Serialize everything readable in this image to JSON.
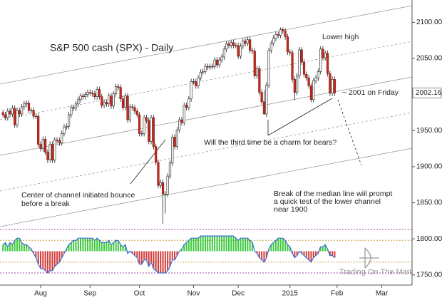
{
  "chart_data": {
    "type": "candlestick",
    "title": "S&P 500 cash (SPX) - Daily",
    "open": [
      1975,
      1972,
      1968,
      1977,
      1973,
      1981,
      1958,
      1978,
      1973,
      1983,
      1987,
      1988,
      1978,
      1978,
      1970,
      1970,
      1931,
      1925,
      1938,
      1920,
      1910,
      1931,
      1909,
      1937,
      1936,
      1933,
      1946,
      1955,
      1956,
      1972,
      1982,
      1981,
      1987,
      1993,
      1998,
      1997,
      2000,
      2003,
      2002,
      2001,
      1997,
      2007,
      1997,
      1985,
      1989,
      1987,
      1998,
      1984,
      2001,
      2011,
      2010,
      1994,
      1982,
      1998,
      1965,
      1983,
      1982,
      1977,
      1972,
      1946,
      1946,
      1968,
      1964,
      1935,
      1968,
      1928,
      1906,
      1874,
      1878,
      1862,
      1862,
      1887,
      1905,
      1941,
      1928,
      1951,
      1965,
      1961,
      1985,
      1982,
      1994,
      2018,
      2018,
      2012,
      2023,
      2031,
      2032,
      2039,
      2038,
      2039,
      2039,
      2048,
      2041,
      2048,
      2052,
      2063,
      2070,
      2068,
      2072,
      2068,
      2068,
      2053,
      2067,
      2074,
      2071,
      2076,
      2061,
      2060,
      2026,
      2036,
      2003,
      1990,
      1973,
      2013,
      2061,
      2071,
      2078,
      2083,
      2082,
      2090,
      2088,
      2080,
      2059,
      2058,
      2021,
      2003,
      2026,
      2062,
      2045,
      2028,
      2023,
      2012,
      1993,
      2019,
      2023,
      2032,
      2063,
      2051,
      2057,
      2029,
      2002,
      2021
    ],
    "high": [
      1979,
      1976,
      1981,
      1981,
      1985,
      1985,
      1982,
      1982,
      1987,
      1991,
      1992,
      1992,
      1982,
      1982,
      1974,
      1974,
      1935,
      1942,
      1942,
      1924,
      1935,
      1935,
      1941,
      1941,
      1940,
      1950,
      1959,
      1960,
      1976,
      1986,
      1986,
      1991,
      1997,
      2002,
      2002,
      2004,
      2007,
      2007,
      2006,
      2005,
      2011,
      2011,
      2001,
      1993,
      1993,
      2002,
      2002,
      2005,
      2015,
      2015,
      2014,
      1998,
      2002,
      2002,
      1987,
      1987,
      1986,
      1981,
      1976,
      1950,
      1972,
      1972,
      1968,
      1972,
      1972,
      1932,
      1910,
      1882,
      1882,
      1866,
      1891,
      1909,
      1945,
      1945,
      1955,
      1969,
      1969,
      1989,
      1989,
      1998,
      2022,
      2022,
      2022,
      2027,
      2035,
      2036,
      2043,
      2043,
      2043,
      2043,
      2052,
      2052,
      2052,
      2056,
      2067,
      2074,
      2074,
      2076,
      2076,
      2072,
      2072,
      2071,
      2078,
      2078,
      2080,
      2080,
      2065,
      2064,
      2040,
      2040,
      2007,
      2006,
      2017,
      2065,
      2075,
      2082,
      2087,
      2087,
      2093,
      2093,
      2092,
      2084,
      2063,
      2062,
      2025,
      2030,
      2066,
      2066,
      2049,
      2032,
      2027,
      2016,
      2023,
      2027,
      2036,
      2067,
      2067,
      2061,
      2061,
      2033,
      2025,
      2025
    ],
    "low": [
      1968,
      1964,
      1964,
      1969,
      1969,
      1954,
      1954,
      1969,
      1969,
      1979,
      1983,
      1974,
      1974,
      1966,
      1966,
      1927,
      1921,
      1921,
      1916,
      1905,
      1906,
      1905,
      1905,
      1932,
      1929,
      1929,
      1942,
      1951,
      1952,
      1968,
      1977,
      1977,
      1983,
      1989,
      1993,
      1993,
      1996,
      1998,
      1997,
      1993,
      1993,
      1993,
      1981,
      1981,
      1983,
      1983,
      1980,
      1980,
      1997,
      2006,
      1990,
      1978,
      1978,
      1961,
      1961,
      1978,
      1973,
      1968,
      1942,
      1942,
      1942,
      1960,
      1931,
      1931,
      1924,
      1902,
      1870,
      1870,
      1821,
      1835,
      1858,
      1883,
      1901,
      1924,
      1924,
      1947,
      1957,
      1957,
      1978,
      1978,
      1990,
      2014,
      2008,
      2008,
      2019,
      2027,
      2028,
      2034,
      2034,
      2035,
      2035,
      2037,
      2037,
      2044,
      2048,
      2059,
      2064,
      2064,
      2064,
      2064,
      2049,
      2049,
      2063,
      2067,
      2067,
      2057,
      2056,
      2022,
      2022,
      1999,
      1986,
      1972,
      1969,
      2009,
      2057,
      2067,
      2074,
      2078,
      2078,
      2084,
      2076,
      2055,
      2054,
      2017,
      1992,
      1999,
      2022,
      2041,
      2024,
      2019,
      2008,
      1989,
      1989,
      2015,
      2019,
      2028,
      2047,
      2047,
      2025,
      1998,
      1998,
      1998
    ],
    "close": [
      1972,
      1968,
      1977,
      1973,
      1981,
      1958,
      1978,
      1973,
      1983,
      1987,
      1988,
      1978,
      1978,
      1970,
      1970,
      1931,
      1925,
      1938,
      1920,
      1910,
      1931,
      1909,
      1937,
      1936,
      1933,
      1946,
      1955,
      1956,
      1972,
      1982,
      1981,
      1987,
      1993,
      1998,
      1997,
      2000,
      2003,
      2002,
      2001,
      1997,
      2007,
      1997,
      1985,
      1989,
      1987,
      1998,
      1984,
      2001,
      2011,
      2010,
      1994,
      1982,
      1998,
      1965,
      1983,
      1982,
      1977,
      1972,
      1946,
      1946,
      1968,
      1964,
      1935,
      1968,
      1928,
      1906,
      1874,
      1878,
      1862,
      1862,
      1887,
      1905,
      1941,
      1928,
      1951,
      1965,
      1961,
      1985,
      1982,
      1994,
      2018,
      2018,
      2012,
      2023,
      2031,
      2032,
      2039,
      2038,
      2039,
      2039,
      2048,
      2041,
      2048,
      2052,
      2063,
      2070,
      2068,
      2072,
      2068,
      2068,
      2053,
      2067,
      2074,
      2071,
      2076,
      2061,
      2060,
      2026,
      2036,
      2003,
      1990,
      1973,
      2013,
      2061,
      2071,
      2078,
      2083,
      2082,
      2090,
      2088,
      2080,
      2059,
      2058,
      2021,
      2003,
      2026,
      2062,
      2045,
      2028,
      2023,
      2012,
      1993,
      2019,
      2023,
      2032,
      2063,
      2051,
      2057,
      2029,
      2002,
      2021,
      2002.16
    ],
    "up_color": "#ffffff",
    "down_color": "#cc2a1e",
    "xlim": [
      -1.27,
      173.9
    ],
    "xticks": [
      {
        "value": 16,
        "label": "Aug"
      },
      {
        "value": 37,
        "label": "Sep"
      },
      {
        "value": 58,
        "label": "Oct"
      },
      {
        "value": 81,
        "label": "Nov"
      },
      {
        "value": 100,
        "label": "Dec"
      },
      {
        "value": 122,
        "label": "2015"
      },
      {
        "value": 142,
        "label": "Feb"
      },
      {
        "value": 161,
        "label": "Mar"
      }
    ],
    "ylim": [
      1736,
      2131
    ],
    "yticks": [
      {
        "value": 1750,
        "label": "1750.00"
      },
      {
        "value": 1800,
        "label": "1800.00"
      },
      {
        "value": 1850,
        "label": "1850.00"
      },
      {
        "value": 1900,
        "label": "1900.00"
      },
      {
        "value": 1950,
        "label": "1950.00"
      },
      {
        "value": 2000,
        "label": "2000.00"
      },
      {
        "value": 2050,
        "label": "2050.00"
      },
      {
        "value": 2100,
        "label": "2100.00"
      }
    ],
    "annotations": [
      "Lower high",
      "~ 2001 on Friday",
      "Will the third time be a charm for bears?",
      "Center of channel initiated bounce",
      "before a break",
      "Break of the median line wiil prompt",
      "a quick test of the lower channel",
      "near 1900"
    ],
    "watermark": "Trading On The Mark",
    "oscillator": {
      "ylim": [
        -1,
        1
      ],
      "levels": [
        1,
        0.5,
        -0.5,
        -1
      ],
      "pos_color": "#3cc83c",
      "neg_color": "#d23c3c",
      "line_color": "#3a6fd8",
      "values": [
        0.3,
        0.4,
        0.2,
        0.4,
        0.3,
        0.5,
        0.6,
        0.6,
        0.4,
        0.3,
        0.3,
        0.2,
        0.1,
        -0.1,
        -0.3,
        -0.6,
        -0.8,
        -0.8,
        -0.9,
        -1.0,
        -0.9,
        -0.9,
        -0.7,
        -0.6,
        -0.5,
        -0.3,
        -0.1,
        0.1,
        0.3,
        0.4,
        0.5,
        0.5,
        0.6,
        0.6,
        0.6,
        0.6,
        0.6,
        0.6,
        0.6,
        0.5,
        0.6,
        0.5,
        0.4,
        0.4,
        0.4,
        0.5,
        0.3,
        0.4,
        0.5,
        0.5,
        0.3,
        0.2,
        0.3,
        -0.1,
        0.0,
        -0.1,
        -0.2,
        -0.3,
        -0.6,
        -0.6,
        -0.4,
        -0.4,
        -0.7,
        -0.5,
        -0.8,
        -0.9,
        -1.0,
        -1.0,
        -1.0,
        -1.0,
        -0.9,
        -0.7,
        -0.4,
        -0.4,
        -0.2,
        0.0,
        0.1,
        0.3,
        0.4,
        0.5,
        0.6,
        0.6,
        0.6,
        0.6,
        0.7,
        0.7,
        0.7,
        0.7,
        0.7,
        0.7,
        0.7,
        0.7,
        0.7,
        0.7,
        0.7,
        0.7,
        0.7,
        0.7,
        0.7,
        0.6,
        0.5,
        0.6,
        0.6,
        0.6,
        0.6,
        0.5,
        0.4,
        0.0,
        -0.1,
        -0.3,
        -0.4,
        -0.5,
        -0.3,
        0.1,
        0.3,
        0.4,
        0.5,
        0.6,
        0.6,
        0.6,
        0.5,
        0.3,
        0.2,
        -0.1,
        -0.3,
        -0.2,
        0.0,
        -0.1,
        -0.2,
        -0.3,
        -0.4,
        -0.5,
        -0.3,
        -0.2,
        -0.1,
        0.2,
        0.2,
        0.3,
        0.1,
        -0.2,
        -0.2,
        -0.3
      ]
    }
  }
}
